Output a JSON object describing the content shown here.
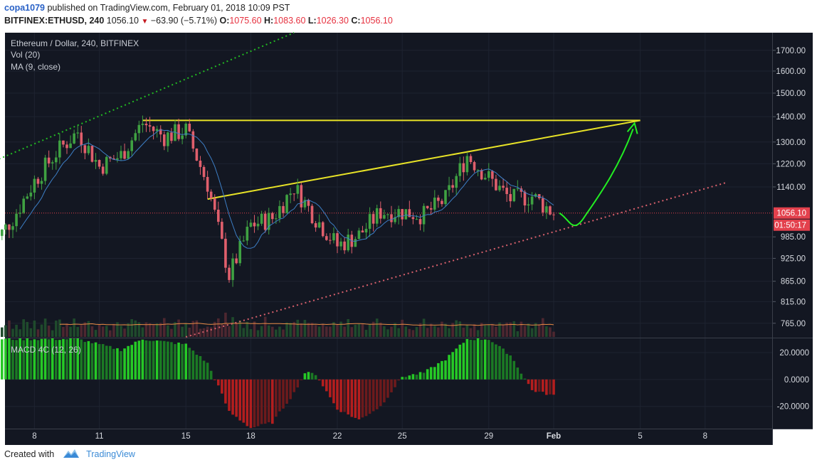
{
  "header": {
    "user": "copa1079",
    "published_text": "published on TradingView.com, February 01, 2018 10:09 PST",
    "symbol": "BITFINEX:ETHUSD, 240",
    "last": "1056.10",
    "change": "−63.90 (−5.71%)",
    "open_label": "O:",
    "open": "1075.60",
    "high_label": "H:",
    "high": "1083.60",
    "low_label": "L:",
    "low": "1026.30",
    "close_label": "C:",
    "close": "1056.10"
  },
  "legend": {
    "title": "Ethereum / Dollar, 240, BITFINEX",
    "vol": "Vol (20)",
    "ma": "MA (9, close)",
    "macd": "MACD 4C (12, 26)"
  },
  "footer": {
    "created_with": "Created with",
    "brand": "TradingView"
  },
  "colors": {
    "background": "#131722",
    "up": "#3fa142",
    "down": "#e05f6c",
    "ma": "#3d7fc6",
    "vol_ma": "#e88b45",
    "trendline": "#e8e327",
    "projection": "#22ee22",
    "support": "#d8606c",
    "resistance_dotted": "#22bb22",
    "price_label": "#e3414d"
  },
  "chart_data": [
    {
      "type": "candlestick",
      "title": "Ethereum / Dollar, 240, BITFINEX",
      "xlabel": "",
      "ylabel": "",
      "x_ticks": [
        "8",
        "11",
        "15",
        "18",
        "22",
        "25",
        "29",
        "Feb",
        "5",
        "8"
      ],
      "y_ticks": [
        "1700.00",
        "1600.00",
        "1500.00",
        "1400.00",
        "1300.00",
        "1220.00",
        "1140.00",
        "1056.10",
        "985.00",
        "925.00",
        "865.00",
        "815.00",
        "765.00"
      ],
      "y_scale": "log",
      "ylim": [
        735,
        1790
      ],
      "last_price": 1056.1,
      "countdown": "01:50:17",
      "anchors": [
        {
          "date": "Jan 6",
          "price": 955
        },
        {
          "date": "Jan 7",
          "price": 1040
        },
        {
          "date": "Jan 8",
          "price": 1160
        },
        {
          "date": "Jan 9",
          "price": 1260
        },
        {
          "date": "Jan 10",
          "price": 1340
        },
        {
          "date": "Jan 11",
          "price": 1210
        },
        {
          "date": "Jan 12",
          "price": 1250
        },
        {
          "date": "Jan 13",
          "price": 1375
        },
        {
          "date": "Jan 14",
          "price": 1320
        },
        {
          "date": "Jan 15",
          "price": 1345
        },
        {
          "date": "Jan 16",
          "price": 1150
        },
        {
          "date": "Jan 17",
          "price": 880
        },
        {
          "date": "Jan 18",
          "price": 1020
        },
        {
          "date": "Jan 19",
          "price": 1040
        },
        {
          "date": "Jan 20",
          "price": 1140
        },
        {
          "date": "Jan 21",
          "price": 1040
        },
        {
          "date": "Jan 22",
          "price": 960
        },
        {
          "date": "Jan 23",
          "price": 990
        },
        {
          "date": "Jan 24",
          "price": 1060
        },
        {
          "date": "Jan 25",
          "price": 1060
        },
        {
          "date": "Jan 26",
          "price": 1050
        },
        {
          "date": "Jan 27",
          "price": 1100
        },
        {
          "date": "Jan 28",
          "price": 1250
        },
        {
          "date": "Jan 29",
          "price": 1170
        },
        {
          "date": "Jan 30",
          "price": 1100
        },
        {
          "date": "Jan 31",
          "price": 1110
        },
        {
          "date": "Feb 1",
          "price": 1056
        }
      ],
      "trendlines": [
        {
          "name": "horizontal resistance",
          "from": [
            "Jan 13",
            1385
          ],
          "to": [
            "Feb 5",
            1385
          ]
        },
        {
          "name": "rising resistance",
          "from": [
            "Jan 16",
            1100
          ],
          "to": [
            "Feb 5",
            1385
          ]
        },
        {
          "name": "support dotted",
          "from": [
            "Jan 15",
            735
          ],
          "to": [
            "Feb 9",
            1155
          ]
        },
        {
          "name": "upper channel dotted",
          "from": [
            "Jan 6",
            1225
          ],
          "to": [
            "Jan 20",
            1790
          ]
        }
      ],
      "projection": {
        "low": 1020,
        "target": 1385,
        "target_date": "Feb 5"
      }
    },
    {
      "type": "bar",
      "title": "MACD 4C (12, 26)",
      "y_ticks": [
        "20.0000",
        "0.0000",
        "-20.0000"
      ],
      "ylim": [
        -36,
        30
      ],
      "anchors": [
        {
          "date": "Jan 6",
          "value": 30
        },
        {
          "date": "Jan 8",
          "value": 30
        },
        {
          "date": "Jan 10",
          "value": 30
        },
        {
          "date": "Jan 11",
          "value": 26
        },
        {
          "date": "Jan 12",
          "value": 22
        },
        {
          "date": "Jan 13",
          "value": 30
        },
        {
          "date": "Jan 15",
          "value": 26
        },
        {
          "date": "Jan 16",
          "value": 12
        },
        {
          "date": "Jan 16.5",
          "value": -5
        },
        {
          "date": "Jan 17",
          "value": -24
        },
        {
          "date": "Jan 18",
          "value": -36
        },
        {
          "date": "Jan 19",
          "value": -32
        },
        {
          "date": "Jan 20",
          "value": -10
        },
        {
          "date": "Jan 20.5",
          "value": 5
        },
        {
          "date": "Jan 21",
          "value": 4
        },
        {
          "date": "Jan 22",
          "value": -22
        },
        {
          "date": "Jan 23",
          "value": -30
        },
        {
          "date": "Jan 24",
          "value": -20
        },
        {
          "date": "Jan 25",
          "value": 2
        },
        {
          "date": "Jan 26",
          "value": 5
        },
        {
          "date": "Jan 27",
          "value": 15
        },
        {
          "date": "Jan 28",
          "value": 30
        },
        {
          "date": "Jan 29",
          "value": 30
        },
        {
          "date": "Jan 30",
          "value": 18
        },
        {
          "date": "Jan 31",
          "value": -8
        },
        {
          "date": "Feb 1",
          "value": -12
        }
      ]
    }
  ]
}
